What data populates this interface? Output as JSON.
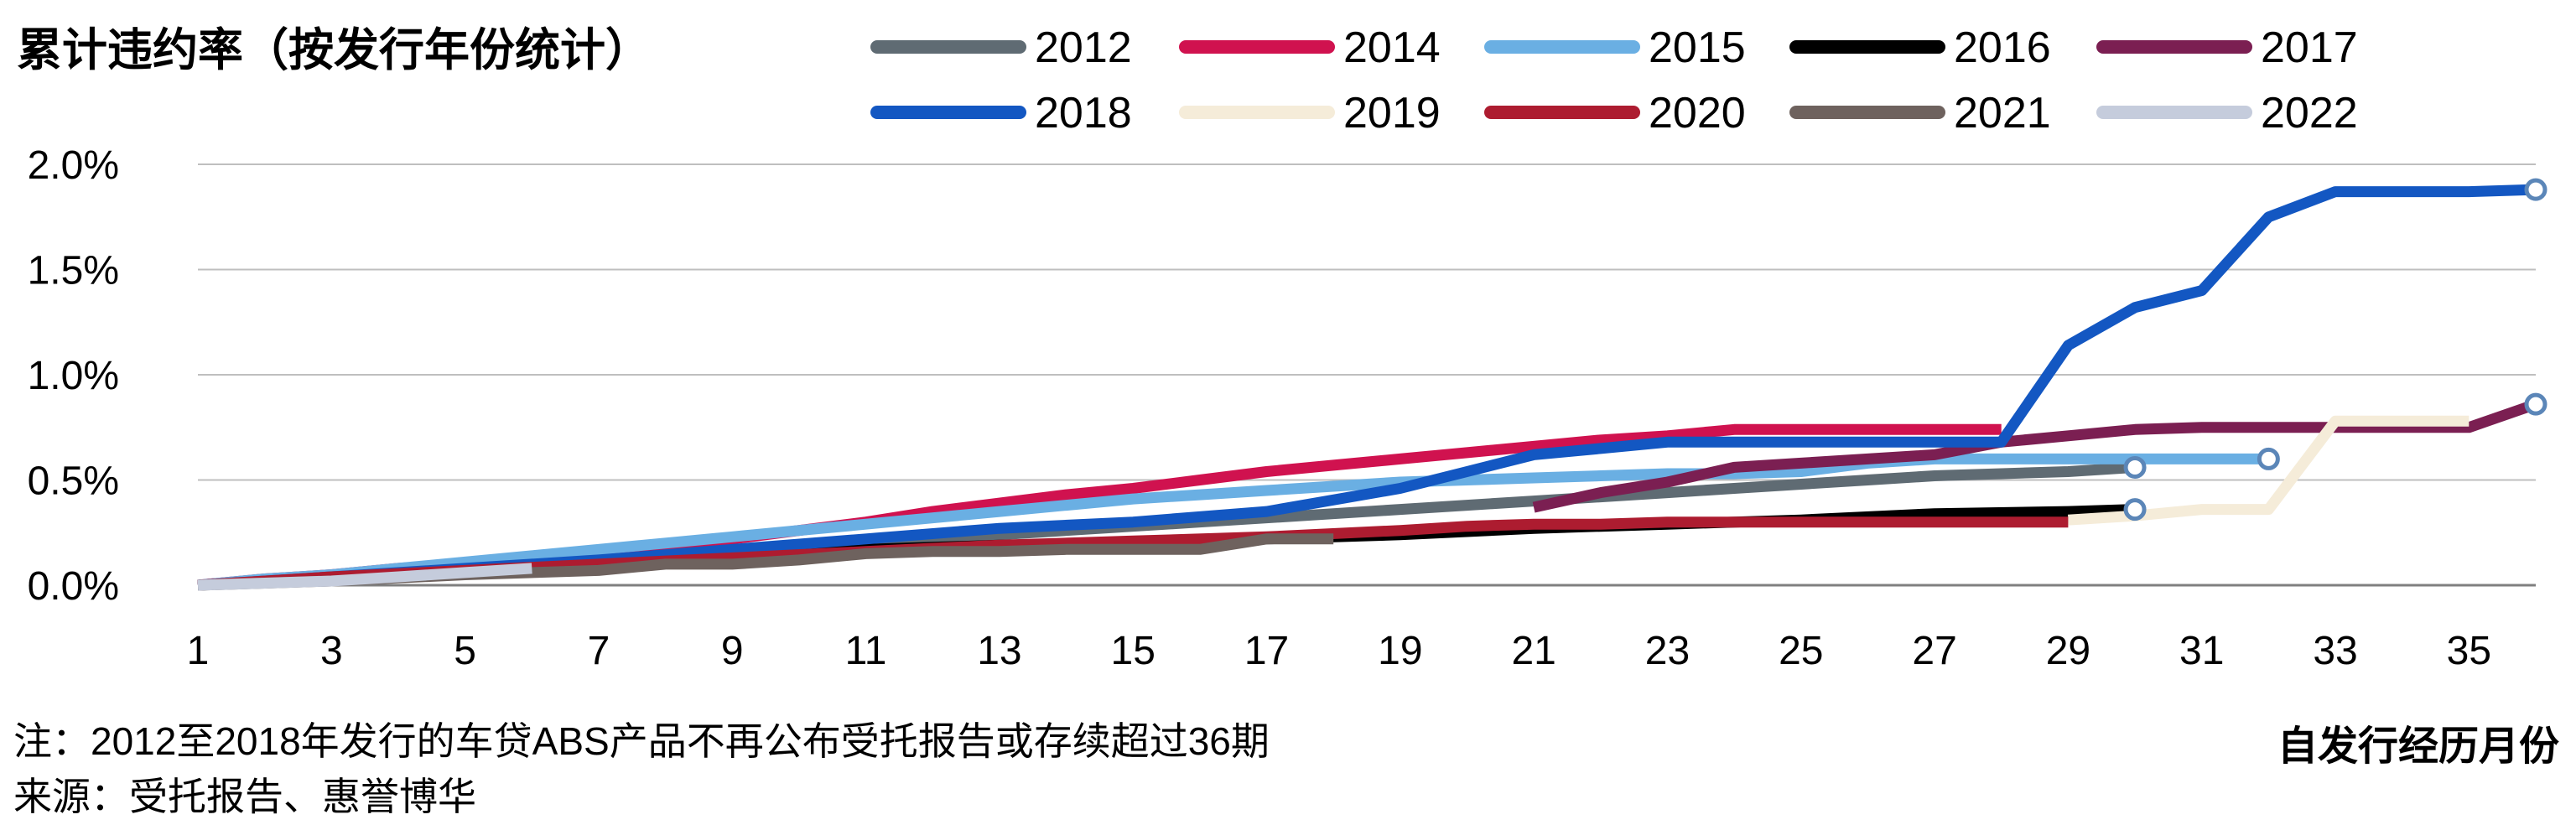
{
  "chart_data": {
    "type": "line",
    "title": "累计违约率（按发行年份统计）",
    "xlabel": "自发行经历月份",
    "ylabel": "",
    "x_ticks": [
      1,
      3,
      5,
      7,
      9,
      11,
      13,
      15,
      17,
      19,
      21,
      23,
      25,
      27,
      29,
      31,
      33,
      35
    ],
    "y_ticks": [
      "0.0%",
      "0.5%",
      "1.0%",
      "1.5%",
      "2.0%"
    ],
    "xlim": [
      1,
      36
    ],
    "ylim": [
      0,
      2.0
    ],
    "grid": "horizontal",
    "legend_position": "top",
    "series": [
      {
        "name": "2012",
        "color": "#5f6b73",
        "end_marker": true,
        "points": [
          [
            1,
            0
          ],
          [
            2,
            0.02
          ],
          [
            3,
            0.04
          ],
          [
            4,
            0.06
          ],
          [
            5,
            0.08
          ],
          [
            6,
            0.1
          ],
          [
            7,
            0.12
          ],
          [
            8,
            0.14
          ],
          [
            9,
            0.16
          ],
          [
            10,
            0.18
          ],
          [
            11,
            0.2
          ],
          [
            12,
            0.22
          ],
          [
            13,
            0.24
          ],
          [
            14,
            0.26
          ],
          [
            15,
            0.28
          ],
          [
            16,
            0.3
          ],
          [
            17,
            0.32
          ],
          [
            18,
            0.34
          ],
          [
            19,
            0.36
          ],
          [
            20,
            0.38
          ],
          [
            21,
            0.4
          ],
          [
            22,
            0.42
          ],
          [
            23,
            0.44
          ],
          [
            24,
            0.46
          ],
          [
            25,
            0.48
          ],
          [
            26,
            0.5
          ],
          [
            27,
            0.52
          ],
          [
            28,
            0.53
          ],
          [
            29,
            0.54
          ],
          [
            30,
            0.56
          ]
        ]
      },
      {
        "name": "2014",
        "color": "#d0124f",
        "end_marker": false,
        "points": [
          [
            1,
            0
          ],
          [
            2,
            0.03
          ],
          [
            3,
            0.05
          ],
          [
            4,
            0.08
          ],
          [
            5,
            0.1
          ],
          [
            6,
            0.13
          ],
          [
            7,
            0.16
          ],
          [
            8,
            0.19
          ],
          [
            9,
            0.22
          ],
          [
            10,
            0.26
          ],
          [
            11,
            0.3
          ],
          [
            12,
            0.35
          ],
          [
            13,
            0.39
          ],
          [
            14,
            0.43
          ],
          [
            15,
            0.46
          ],
          [
            16,
            0.5
          ],
          [
            17,
            0.54
          ],
          [
            18,
            0.57
          ],
          [
            19,
            0.6
          ],
          [
            20,
            0.63
          ],
          [
            21,
            0.66
          ],
          [
            22,
            0.69
          ],
          [
            23,
            0.71
          ],
          [
            24,
            0.74
          ],
          [
            25,
            0.74
          ],
          [
            26,
            0.74
          ],
          [
            27,
            0.74
          ],
          [
            28,
            0.74
          ]
        ]
      },
      {
        "name": "2015",
        "color": "#6aafe3",
        "end_marker": true,
        "points": [
          [
            1,
            0
          ],
          [
            2,
            0.03
          ],
          [
            3,
            0.05
          ],
          [
            4,
            0.08
          ],
          [
            5,
            0.11
          ],
          [
            6,
            0.14
          ],
          [
            7,
            0.17
          ],
          [
            8,
            0.2
          ],
          [
            9,
            0.23
          ],
          [
            10,
            0.26
          ],
          [
            11,
            0.29
          ],
          [
            12,
            0.32
          ],
          [
            13,
            0.35
          ],
          [
            14,
            0.38
          ],
          [
            15,
            0.41
          ],
          [
            16,
            0.43
          ],
          [
            17,
            0.45
          ],
          [
            18,
            0.47
          ],
          [
            19,
            0.49
          ],
          [
            20,
            0.5
          ],
          [
            21,
            0.51
          ],
          [
            22,
            0.52
          ],
          [
            23,
            0.53
          ],
          [
            24,
            0.53
          ],
          [
            25,
            0.54
          ],
          [
            26,
            0.58
          ],
          [
            27,
            0.6
          ],
          [
            28,
            0.6
          ],
          [
            29,
            0.6
          ],
          [
            30,
            0.6
          ],
          [
            31,
            0.6
          ],
          [
            32,
            0.6
          ]
        ]
      },
      {
        "name": "2016",
        "color": "#000000",
        "end_marker": true,
        "points": [
          [
            1,
            0
          ],
          [
            3,
            0.03
          ],
          [
            5,
            0.07
          ],
          [
            7,
            0.11
          ],
          [
            9,
            0.14
          ],
          [
            11,
            0.17
          ],
          [
            13,
            0.19
          ],
          [
            15,
            0.2
          ],
          [
            17,
            0.22
          ],
          [
            19,
            0.24
          ],
          [
            21,
            0.27
          ],
          [
            23,
            0.29
          ],
          [
            25,
            0.31
          ],
          [
            27,
            0.34
          ],
          [
            29,
            0.35
          ],
          [
            30,
            0.36
          ]
        ]
      },
      {
        "name": "2017",
        "color": "#7b1f52",
        "end_marker": true,
        "points": [
          [
            21,
            0.37
          ],
          [
            22,
            0.44
          ],
          [
            23,
            0.49
          ],
          [
            24,
            0.56
          ],
          [
            25,
            0.58
          ],
          [
            26,
            0.6
          ],
          [
            27,
            0.62
          ],
          [
            28,
            0.68
          ],
          [
            29,
            0.71
          ],
          [
            30,
            0.74
          ],
          [
            31,
            0.75
          ],
          [
            32,
            0.75
          ],
          [
            33,
            0.75
          ],
          [
            34,
            0.75
          ],
          [
            35,
            0.75
          ],
          [
            36,
            0.86
          ]
        ]
      },
      {
        "name": "2018",
        "color": "#1357c2",
        "end_marker": true,
        "points": [
          [
            1,
            0
          ],
          [
            3,
            0.04
          ],
          [
            5,
            0.08
          ],
          [
            7,
            0.12
          ],
          [
            9,
            0.17
          ],
          [
            11,
            0.22
          ],
          [
            13,
            0.27
          ],
          [
            15,
            0.3
          ],
          [
            17,
            0.35
          ],
          [
            19,
            0.46
          ],
          [
            20,
            0.54
          ],
          [
            21,
            0.62
          ],
          [
            22,
            0.65
          ],
          [
            23,
            0.68
          ],
          [
            24,
            0.68
          ],
          [
            25,
            0.68
          ],
          [
            26,
            0.68
          ],
          [
            27,
            0.68
          ],
          [
            28,
            0.68
          ],
          [
            29,
            1.14
          ],
          [
            30,
            1.32
          ],
          [
            31,
            1.4
          ],
          [
            32,
            1.75
          ],
          [
            33,
            1.87
          ],
          [
            34,
            1.87
          ],
          [
            35,
            1.87
          ],
          [
            36,
            1.88
          ]
        ]
      },
      {
        "name": "2019",
        "color": "#f5ecd9",
        "end_marker": false,
        "points": [
          [
            29,
            0.31
          ],
          [
            30,
            0.33
          ],
          [
            31,
            0.36
          ],
          [
            32,
            0.36
          ],
          [
            33,
            0.78
          ],
          [
            34,
            0.78
          ],
          [
            35,
            0.78
          ]
        ]
      },
      {
        "name": "2020",
        "color": "#ad1c30",
        "end_marker": false,
        "points": [
          [
            1,
            0
          ],
          [
            3,
            0.04
          ],
          [
            5,
            0.07
          ],
          [
            7,
            0.1
          ],
          [
            9,
            0.13
          ],
          [
            11,
            0.16
          ],
          [
            13,
            0.19
          ],
          [
            15,
            0.21
          ],
          [
            17,
            0.23
          ],
          [
            19,
            0.26
          ],
          [
            20,
            0.28
          ],
          [
            21,
            0.29
          ],
          [
            22,
            0.29
          ],
          [
            23,
            0.3
          ],
          [
            24,
            0.3
          ],
          [
            25,
            0.3
          ],
          [
            26,
            0.3
          ],
          [
            27,
            0.3
          ],
          [
            28,
            0.3
          ],
          [
            29,
            0.3
          ]
        ]
      },
      {
        "name": "2021",
        "color": "#6e625e",
        "end_marker": false,
        "points": [
          [
            1,
            0
          ],
          [
            3,
            0.02
          ],
          [
            5,
            0.05
          ],
          [
            7,
            0.07
          ],
          [
            8,
            0.1
          ],
          [
            9,
            0.1
          ],
          [
            10,
            0.12
          ],
          [
            11,
            0.15
          ],
          [
            12,
            0.16
          ],
          [
            13,
            0.16
          ],
          [
            14,
            0.17
          ],
          [
            15,
            0.17
          ],
          [
            16,
            0.17
          ],
          [
            17,
            0.22
          ],
          [
            18,
            0.22
          ]
        ]
      },
      {
        "name": "2022",
        "color": "#c5ccdc",
        "end_marker": false,
        "points": [
          [
            1,
            0
          ],
          [
            2,
            0.01
          ],
          [
            3,
            0.02
          ],
          [
            4,
            0.04
          ],
          [
            5,
            0.06
          ],
          [
            6,
            0.08
          ]
        ]
      }
    ]
  },
  "notes": {
    "line1": "注：2012至2018年发行的车贷ABS产品不再公布受托报告或存续超过36期",
    "line2": "来源：受托报告、惠誉博华"
  }
}
